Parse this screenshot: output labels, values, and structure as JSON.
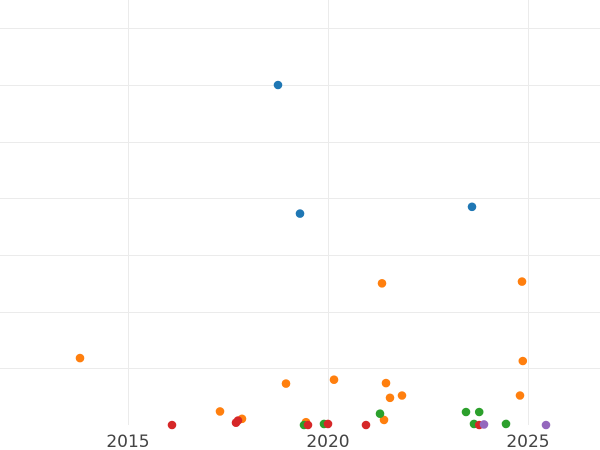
{
  "chart_data": {
    "type": "scatter",
    "title": "",
    "xlabel": "",
    "ylabel": "",
    "xlim": [
      2011.8,
      2026.8
    ],
    "ylim": [
      0,
      7.5
    ],
    "x_ticks": [
      2015,
      2020,
      2025
    ],
    "y_gridlines": [
      1,
      2,
      3,
      4,
      5,
      6,
      7
    ],
    "grid": true,
    "series": [
      {
        "color": "#1f77b4",
        "points": [
          {
            "x": 2018.75,
            "y": 6.0
          },
          {
            "x": 2019.3,
            "y": 3.73
          },
          {
            "x": 2023.6,
            "y": 3.85
          }
        ]
      },
      {
        "color": "#ff7f0e",
        "points": [
          {
            "x": 2013.8,
            "y": 1.18
          },
          {
            "x": 2017.3,
            "y": 0.24
          },
          {
            "x": 2017.85,
            "y": 0.11
          },
          {
            "x": 2018.95,
            "y": 0.73
          },
          {
            "x": 2019.45,
            "y": 0.05
          },
          {
            "x": 2020.15,
            "y": 0.8
          },
          {
            "x": 2021.35,
            "y": 2.5
          },
          {
            "x": 2021.4,
            "y": 0.09
          },
          {
            "x": 2021.45,
            "y": 0.74
          },
          {
            "x": 2021.55,
            "y": 0.48
          },
          {
            "x": 2021.85,
            "y": 0.52
          },
          {
            "x": 2024.8,
            "y": 0.52
          },
          {
            "x": 2024.85,
            "y": 2.53
          },
          {
            "x": 2024.87,
            "y": 1.13
          }
        ]
      },
      {
        "color": "#2ca02c",
        "points": [
          {
            "x": 2019.4,
            "y": 0.0
          },
          {
            "x": 2019.9,
            "y": 0.02
          },
          {
            "x": 2021.3,
            "y": 0.2
          },
          {
            "x": 2023.45,
            "y": 0.23
          },
          {
            "x": 2023.65,
            "y": 0.02
          },
          {
            "x": 2023.78,
            "y": 0.23
          },
          {
            "x": 2024.45,
            "y": 0.02
          }
        ]
      },
      {
        "color": "#d62728",
        "points": [
          {
            "x": 2016.1,
            "y": 0.0
          },
          {
            "x": 2017.7,
            "y": 0.04
          },
          {
            "x": 2017.75,
            "y": 0.08
          },
          {
            "x": 2019.5,
            "y": 0.0
          },
          {
            "x": 2020.0,
            "y": 0.02
          },
          {
            "x": 2020.95,
            "y": 0.0
          },
          {
            "x": 2023.78,
            "y": 0.0
          }
        ]
      },
      {
        "color": "#9467bd",
        "points": [
          {
            "x": 2023.9,
            "y": 0.01
          },
          {
            "x": 2025.45,
            "y": 0.0
          }
        ]
      }
    ]
  }
}
